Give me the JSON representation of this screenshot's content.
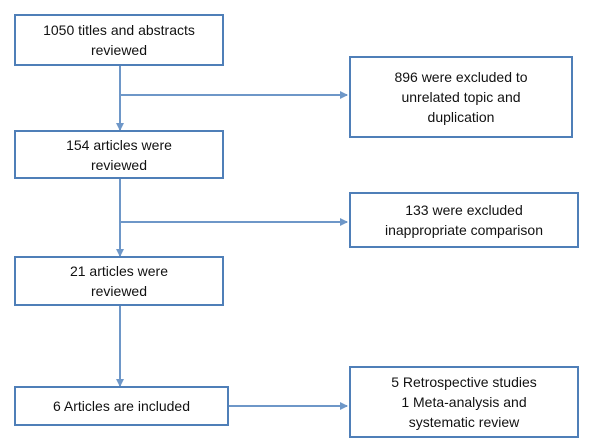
{
  "colors": {
    "box_border": "#4f7fb8",
    "connector": "#6e97c8",
    "text": "#111111"
  },
  "main_steps": [
    {
      "lines": [
        "1050 titles and abstracts",
        "reviewed"
      ]
    },
    {
      "lines": [
        "154 articles were",
        "reviewed"
      ]
    },
    {
      "lines": [
        "21 articles were",
        "reviewed"
      ]
    },
    {
      "lines": [
        "6 Articles are included"
      ]
    }
  ],
  "side_notes": [
    {
      "lines": [
        "896 were excluded to",
        "unrelated topic and",
        "duplication"
      ]
    },
    {
      "lines": [
        "133 were excluded",
        "inappropriate comparison"
      ]
    },
    {
      "lines": [
        "5 Retrospective studies",
        "1 Meta-analysis and",
        "systematic review"
      ]
    }
  ]
}
